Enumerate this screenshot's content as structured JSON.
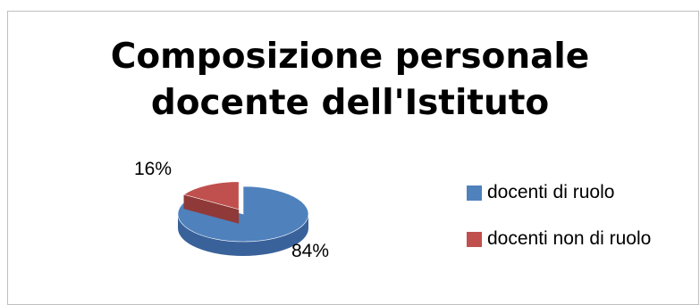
{
  "chart_data": {
    "type": "pie",
    "title": [
      "Composizione personale",
      "docente dell'Istituto"
    ],
    "slices": [
      {
        "label": "docenti di ruolo",
        "value": 84,
        "display": "84%",
        "color": "#4f81bd",
        "side_color": "#3a629a"
      },
      {
        "label": "docenti non di ruolo",
        "value": 16,
        "display": "16%",
        "color": "#c0504d",
        "side_color": "#8f3a38"
      }
    ],
    "legend_position": "right"
  }
}
